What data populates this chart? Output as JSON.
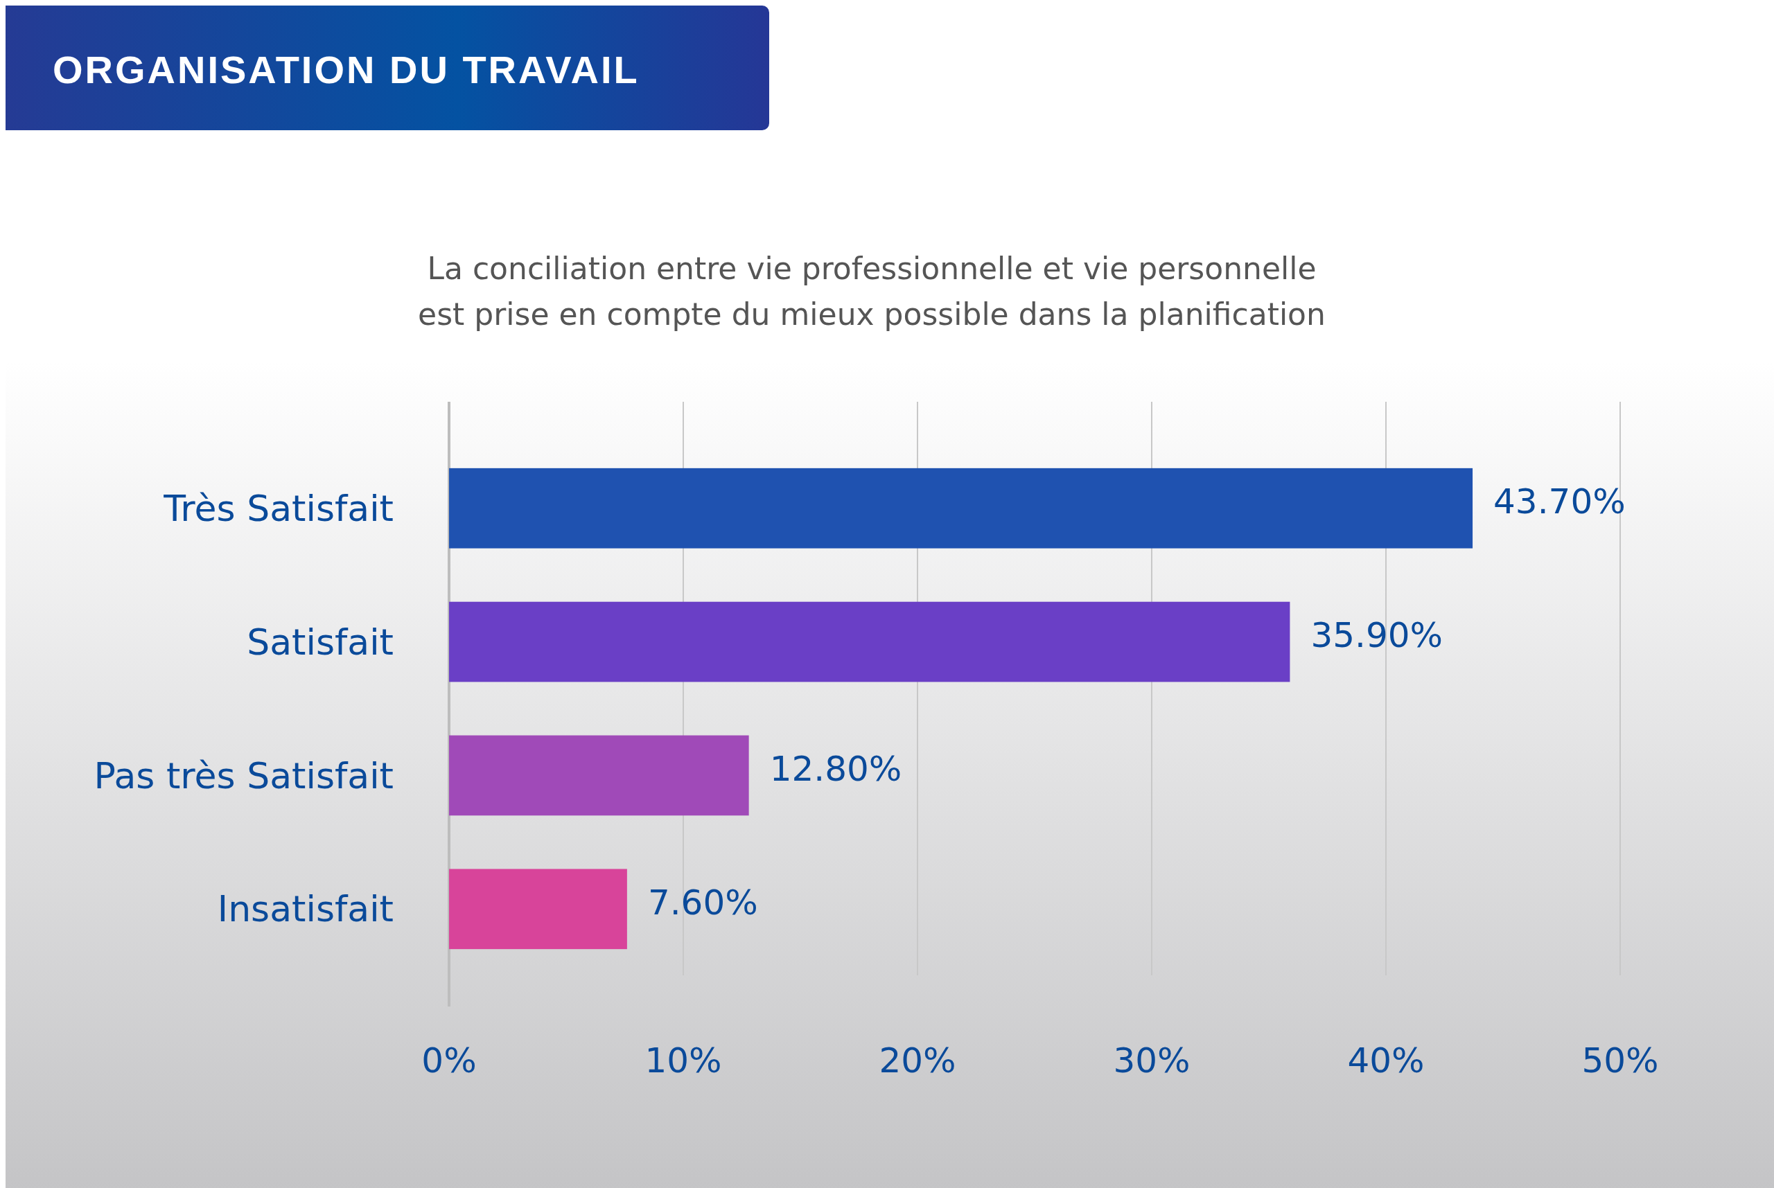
{
  "chart_data": {
    "type": "bar",
    "orientation": "horizontal",
    "title": "ORGANISATION DU TRAVAIL",
    "subtitle": "La conciliation entre vie professionnelle et vie personnelle\nest prise en compte du mieux possible dans la planification",
    "categories": [
      "Très Satisfait",
      "Satisfait",
      "Pas très Satisfait",
      "Insatisfait"
    ],
    "values": [
      43.7,
      35.9,
      12.8,
      7.6
    ],
    "colors": [
      "#1f52b0",
      "#6a3fc6",
      "#a04ab8",
      "#d8449a"
    ],
    "value_labels": [
      "43.70%",
      "35.90%",
      "12.80%",
      "7.60%"
    ],
    "xlim": [
      0,
      50
    ],
    "xticks": [
      {
        "value": 0,
        "label": "0%"
      },
      {
        "value": 10,
        "label": "10%"
      },
      {
        "value": 20,
        "label": "20%"
      },
      {
        "value": 30,
        "label": "30%"
      },
      {
        "value": 40,
        "label": "40%"
      },
      {
        "value": 50,
        "label": "50%"
      }
    ],
    "grid": "x"
  }
}
